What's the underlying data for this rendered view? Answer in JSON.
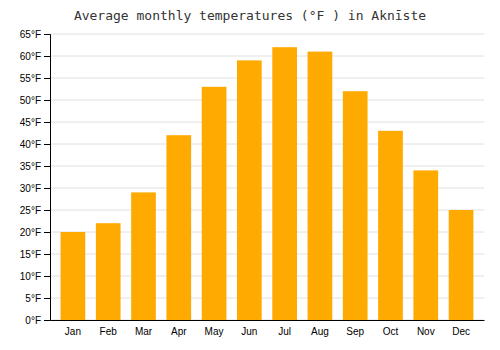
{
  "chart_data": {
    "type": "bar",
    "title": "Average monthly temperatures (°F ) in Aknīste",
    "categories": [
      "Jan",
      "Feb",
      "Mar",
      "Apr",
      "May",
      "Jun",
      "Jul",
      "Aug",
      "Sep",
      "Oct",
      "Nov",
      "Dec"
    ],
    "values": [
      20,
      22,
      29,
      42,
      53,
      59,
      62,
      61,
      52,
      43,
      34,
      25
    ],
    "color": "#FFAA00",
    "ylim": [
      0,
      65
    ],
    "yticks": [
      {
        "value": 0,
        "label": "0°F"
      },
      {
        "value": 5,
        "label": "5°F"
      },
      {
        "value": 10,
        "label": "10°F"
      },
      {
        "value": 15,
        "label": "15°F"
      },
      {
        "value": 20,
        "label": "20°F"
      },
      {
        "value": 25,
        "label": "25°F"
      },
      {
        "value": 30,
        "label": "30°F"
      },
      {
        "value": 35,
        "label": "35°F"
      },
      {
        "value": 40,
        "label": "40°F"
      },
      {
        "value": 45,
        "label": "45°F"
      },
      {
        "value": 50,
        "label": "50°F"
      },
      {
        "value": 55,
        "label": "55°F"
      },
      {
        "value": 60,
        "label": "60°F"
      },
      {
        "value": 65,
        "label": "65°F"
      }
    ],
    "grid": true
  }
}
